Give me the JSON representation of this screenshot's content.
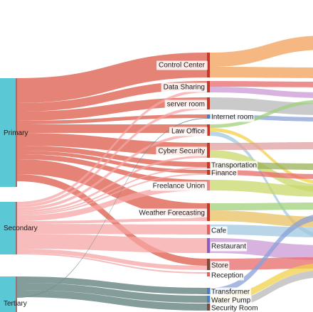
{
  "diagram": {
    "type": "sankey",
    "sources": [
      {
        "id": "primary",
        "label": "Primary",
        "color": "#5bc8d6"
      },
      {
        "id": "secondary",
        "label": "Secondary",
        "color": "#5bc8d6"
      },
      {
        "id": "tertiary",
        "label": "Tertiary",
        "color": "#5bc8d6"
      }
    ],
    "middle": [
      {
        "id": "control-center",
        "label": "Control Center",
        "color": "#c0392b"
      },
      {
        "id": "data-sharing",
        "label": "Data Sharing",
        "color": "#c0392b"
      },
      {
        "id": "server-room",
        "label": "server room",
        "color": "#c0392b"
      },
      {
        "id": "internet-room",
        "label": "Internet room",
        "color": "#4a7fc1"
      },
      {
        "id": "law-office",
        "label": "Law Office",
        "color": "#c0392b"
      },
      {
        "id": "cyber-security",
        "label": "Cyber Security",
        "color": "#c0392b"
      },
      {
        "id": "transportation",
        "label": "Transportation",
        "color": "#c0392b"
      },
      {
        "id": "finance",
        "label": "Finance",
        "color": "#c0392b"
      },
      {
        "id": "freelance-union",
        "label": "Freelance Union",
        "color": "#e88a8a"
      },
      {
        "id": "weather-forecasting",
        "label": "Weather Forecasting",
        "color": "#c0392b"
      },
      {
        "id": "cafe",
        "label": "Cafe",
        "color": "#e26060"
      },
      {
        "id": "restaurant",
        "label": "Restaurant",
        "color": "#8e5cc4"
      },
      {
        "id": "store",
        "label": "Store",
        "color": "#7a4a3a"
      },
      {
        "id": "reception",
        "label": "Reception",
        "color": "#e26060"
      },
      {
        "id": "transformer",
        "label": "Transformer",
        "color": "#4a7fc1"
      },
      {
        "id": "water-pump",
        "label": "Water Pump",
        "color": "#4a7fc1"
      },
      {
        "id": "security-room",
        "label": "Security Room",
        "color": "#7a4a3a"
      }
    ],
    "flow_colors": {
      "primary": "#e06d5e",
      "secondary": "#f7a5a5",
      "tertiary": "#6e8c8a",
      "right": [
        "#f2a05a",
        "#e86a6a",
        "#9fd07a",
        "#b8b8b8",
        "#cc9ad6",
        "#8aa0d8",
        "#f0d04a",
        "#c8d86a",
        "#e0a0a0",
        "#a0c8e0",
        "#9ab05a",
        "#e8c060"
      ]
    }
  }
}
